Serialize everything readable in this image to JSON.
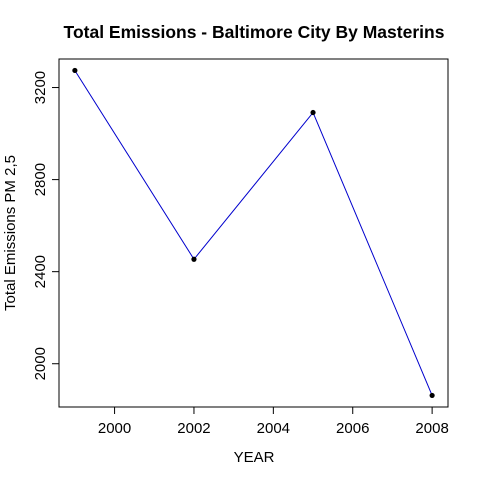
{
  "chart_data": {
    "type": "line",
    "title": "Total Emissions - Baltimore City By Masterins",
    "xlabel": "YEAR",
    "ylabel": "Total Emissions PM 2,5",
    "x": [
      1999,
      2002,
      2005,
      2008
    ],
    "series": [
      {
        "values": [
          3274.2,
          2453.9,
          3091.4,
          1862.3
        ],
        "color": "#0000cd"
      }
    ],
    "xlim": [
      1998.6,
      2008.4
    ],
    "ylim": [
      1812,
      3324
    ],
    "xticks": [
      2000,
      2002,
      2004,
      2006,
      2008
    ],
    "yticks": [
      2000,
      2400,
      2800,
      3200
    ],
    "xtick_labels": [
      "2000",
      "2002",
      "2004",
      "2006",
      "2008"
    ],
    "ytick_labels": [
      "2000",
      "2400",
      "2800",
      "3200"
    ],
    "point_color": "#000000",
    "grid": false,
    "legend": "none"
  }
}
